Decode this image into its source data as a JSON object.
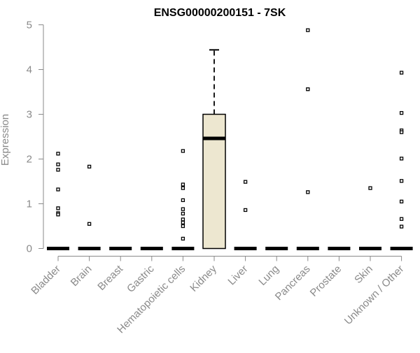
{
  "chart_data": {
    "type": "box",
    "title": "ENSG00000200151 - 7SK",
    "xlabel": "",
    "ylabel": "Expression",
    "ylim": [
      0,
      5
    ],
    "yticks": [
      0,
      1,
      2,
      3,
      4,
      5
    ],
    "grid": false,
    "colors": {
      "box_fill": "#ede7d0",
      "axis": "#8a8a8a",
      "text": "#8a8a8a",
      "title": "#000000"
    },
    "categories": [
      "Bladder",
      "Brain",
      "Breast",
      "Gastric",
      "Hematopoietic cells",
      "Kidney",
      "Liver",
      "Lung",
      "Pancreas",
      "Prostate",
      "Skin",
      "Unknown / Other"
    ],
    "boxes": [
      {
        "category": "Bladder",
        "min": 0,
        "q1": 0,
        "median": 0,
        "q3": 0,
        "max": 0,
        "outliers": [
          2.12,
          1.88,
          1.76,
          1.32,
          0.9,
          0.79,
          0.76
        ]
      },
      {
        "category": "Brain",
        "min": 0,
        "q1": 0,
        "median": 0,
        "q3": 0,
        "max": 0,
        "outliers": [
          1.83,
          0.55
        ]
      },
      {
        "category": "Breast",
        "min": 0,
        "q1": 0,
        "median": 0,
        "q3": 0,
        "max": 0,
        "outliers": []
      },
      {
        "category": "Gastric",
        "min": 0,
        "q1": 0,
        "median": 0,
        "q3": 0,
        "max": 0,
        "outliers": []
      },
      {
        "category": "Hematopoietic cells",
        "min": 0,
        "q1": 0,
        "median": 0,
        "q3": 0,
        "max": 0,
        "outliers": [
          2.18,
          1.43,
          1.35,
          1.08,
          0.88,
          0.78,
          0.65,
          0.58,
          0.5,
          0.22
        ]
      },
      {
        "category": "Kidney",
        "min": 0,
        "q1": 0,
        "median": 2.46,
        "q3": 3.0,
        "max": 4.44,
        "outliers": []
      },
      {
        "category": "Liver",
        "min": 0,
        "q1": 0,
        "median": 0,
        "q3": 0,
        "max": 0,
        "outliers": [
          1.49,
          0.86
        ]
      },
      {
        "category": "Lung",
        "min": 0,
        "q1": 0,
        "median": 0,
        "q3": 0,
        "max": 0,
        "outliers": []
      },
      {
        "category": "Pancreas",
        "min": 0,
        "q1": 0,
        "median": 0,
        "q3": 0,
        "max": 0,
        "outliers": [
          4.88,
          3.56,
          1.26
        ]
      },
      {
        "category": "Prostate",
        "min": 0,
        "q1": 0,
        "median": 0,
        "q3": 0,
        "max": 0,
        "outliers": []
      },
      {
        "category": "Skin",
        "min": 0,
        "q1": 0,
        "median": 0,
        "q3": 0,
        "max": 0,
        "outliers": [
          1.35
        ]
      },
      {
        "category": "Unknown / Other",
        "min": 0,
        "q1": 0,
        "median": 0,
        "q3": 0,
        "max": 0,
        "outliers": [
          3.93,
          3.03,
          2.64,
          2.6,
          2.01,
          1.51,
          1.05,
          0.66,
          0.49
        ]
      }
    ]
  }
}
